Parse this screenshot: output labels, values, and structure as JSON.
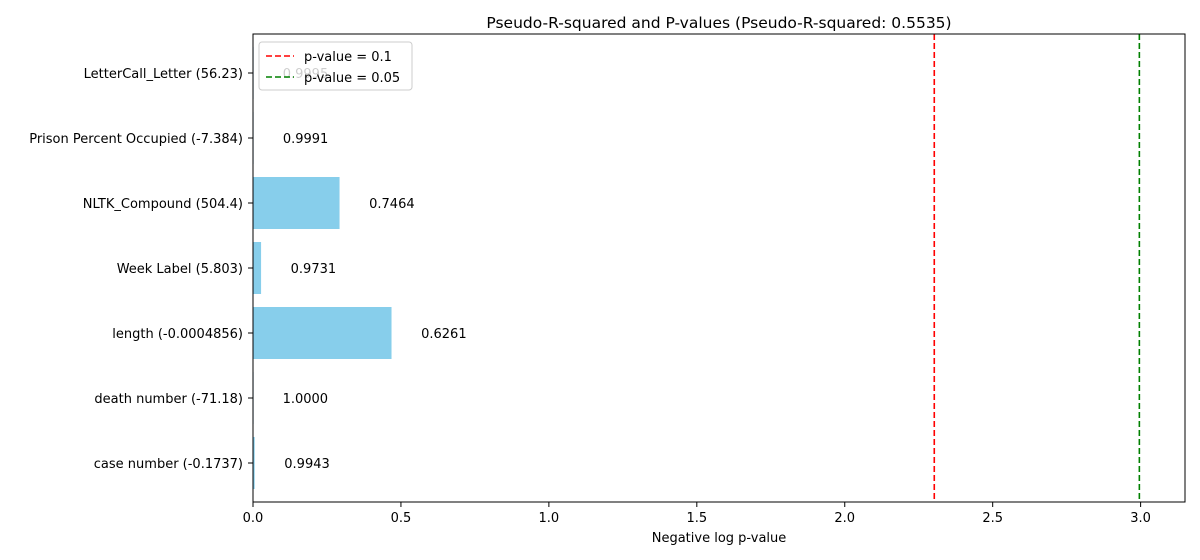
{
  "chart_data": {
    "type": "bar",
    "orientation": "horizontal",
    "title": "Pseudo-R-squared and P-values (Pseudo-R-squared: 0.5535)",
    "xlabel": "Negative log p-value",
    "ylabel": "",
    "xlim": [
      0,
      3.15
    ],
    "xticks": [
      0.0,
      0.5,
      1.0,
      1.5,
      2.0,
      2.5,
      3.0
    ],
    "xtick_labels": [
      "0.0",
      "0.5",
      "1.0",
      "1.5",
      "2.0",
      "2.5",
      "3.0"
    ],
    "grid": false,
    "legend_position": "top-left",
    "bar_color": "#87ceeb",
    "categories": [
      "case number (-0.1737)",
      "death number (-71.18)",
      "length (-0.0004856)",
      "Week Label (5.803)",
      "NLTK_Compound (504.4)",
      "Prison Percent Occupied (-7.384)",
      "LetterCall_Letter (56.23)"
    ],
    "values": [
      0.0057,
      0.0,
      0.4682,
      0.0273,
      0.2925,
      0.0009,
      0.0005
    ],
    "value_labels": [
      "0.9943",
      "1.0000",
      "0.6261",
      "0.9731",
      "0.7464",
      "0.9991",
      "0.9995"
    ],
    "reference_lines": [
      {
        "label": "p-value = 0.1",
        "x": 2.302585,
        "color": "#ff0000"
      },
      {
        "label": "p-value = 0.05",
        "x": 2.995732,
        "color": "#008000"
      }
    ]
  }
}
